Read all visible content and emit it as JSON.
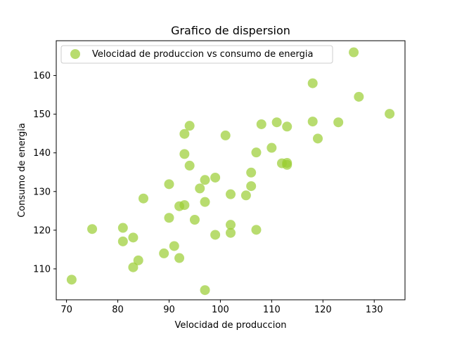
{
  "chart_data": {
    "type": "scatter",
    "title": "Grafico de dispersion",
    "xlabel": "Velocidad de produccion",
    "ylabel": "Consumo de energia",
    "xlim": [
      68,
      136
    ],
    "ylim": [
      102,
      169
    ],
    "xticks": [
      70,
      80,
      90,
      100,
      110,
      120,
      130
    ],
    "yticks": [
      110,
      120,
      130,
      140,
      150,
      160
    ],
    "grid": false,
    "legend_position": "top-left",
    "series": [
      {
        "name": "Velocidad de produccion vs consumo de energia",
        "color": "#9acd32",
        "alpha": 0.7,
        "x": [
          71,
          75,
          81,
          81,
          83,
          83,
          84,
          85,
          89,
          90,
          90,
          91,
          92,
          92,
          93,
          93,
          93,
          94,
          94,
          95,
          96,
          97,
          97,
          97,
          99,
          99,
          101,
          102,
          102,
          102,
          105,
          106,
          106,
          107,
          107,
          108,
          110,
          111,
          112,
          113,
          113,
          113,
          118,
          118,
          119,
          123,
          126,
          127,
          133
        ],
        "y": [
          107.2,
          120.3,
          120.6,
          117.1,
          118.1,
          110.4,
          112.2,
          128.2,
          114.0,
          131.9,
          123.2,
          115.9,
          112.8,
          126.2,
          126.5,
          139.7,
          144.9,
          136.7,
          147.0,
          122.7,
          130.8,
          133.0,
          127.3,
          104.5,
          133.6,
          118.8,
          144.5,
          129.3,
          121.4,
          119.3,
          129.0,
          131.4,
          134.9,
          140.1,
          120.1,
          147.4,
          141.3,
          147.9,
          137.3,
          137.4,
          136.9,
          146.8,
          158.0,
          148.1,
          143.7,
          147.9,
          166.0,
          154.5,
          150.1
        ]
      }
    ]
  }
}
